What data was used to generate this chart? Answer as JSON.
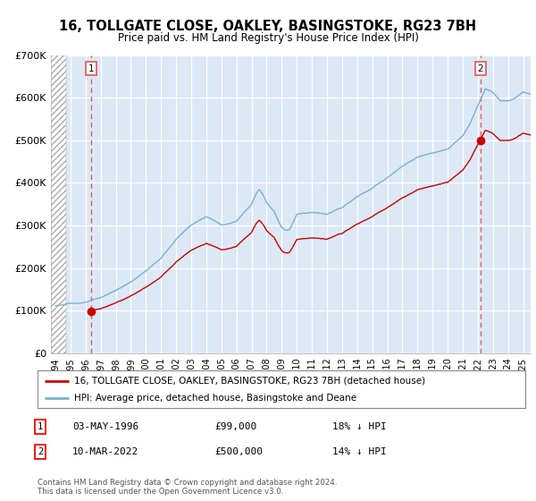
{
  "title_line1": "16, TOLLGATE CLOSE, OAKLEY, BASINGSTOKE, RG23 7BH",
  "title_line2": "Price paid vs. HM Land Registry's House Price Index (HPI)",
  "purchase1_year": 1996.37,
  "purchase1_price": 99000,
  "purchase2_year": 2022.17,
  "purchase2_price": 500000,
  "legend_property": "16, TOLLGATE CLOSE, OAKLEY, BASINGSTOKE, RG23 7BH (detached house)",
  "legend_hpi": "HPI: Average price, detached house, Basingstoke and Deane",
  "footer": "Contains HM Land Registry data © Crown copyright and database right 2024.\nThis data is licensed under the Open Government Licence v3.0.",
  "property_color": "#cc0000",
  "hpi_color": "#7ab0d4",
  "vline_color": "#e06060",
  "bg_color": "#dce8f5",
  "ylim_max": 700000,
  "ylim_min": 0,
  "xmin": 1994.0,
  "xmax": 2025.5,
  "hatch_end": 1994.7,
  "ann1_date": "03-MAY-1996",
  "ann1_price": "£99,000",
  "ann1_hpi": "18% ↓ HPI",
  "ann2_date": "10-MAR-2022",
  "ann2_price": "£500,000",
  "ann2_hpi": "14% ↓ HPI"
}
